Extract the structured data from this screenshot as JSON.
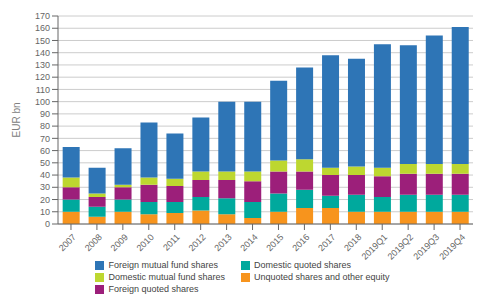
{
  "chart_data": {
    "type": "bar",
    "stacked": true,
    "grid": true,
    "legend": "bottom",
    "ylabel": "EUR bn",
    "categories": [
      "2007",
      "2008",
      "2009",
      "2010",
      "2011",
      "2012",
      "2013",
      "2014",
      "2015",
      "2016",
      "2017",
      "2018",
      "2019Q1",
      "2019Q2",
      "2019Q3",
      "2019Q4"
    ],
    "series": [
      {
        "name": "Unquoted shares and other equity",
        "color": "#f7941d",
        "values": [
          10,
          6,
          10,
          8,
          9,
          11,
          8,
          5,
          10,
          13,
          13,
          10,
          10,
          10,
          10,
          10
        ]
      },
      {
        "name": "Domestic quoted shares",
        "color": "#00a99d",
        "values": [
          10,
          8,
          10,
          10,
          9,
          11,
          13,
          13,
          15,
          15,
          10,
          14,
          12,
          14,
          14,
          14
        ]
      },
      {
        "name": "Foreign quoted shares",
        "color": "#9c1f7a",
        "values": [
          10,
          8,
          10,
          14,
          13,
          14,
          15,
          17,
          18,
          15,
          17,
          16,
          17,
          17,
          17,
          17
        ]
      },
      {
        "name": "Domestic mutual fund shares",
        "color": "#bdd730",
        "values": [
          8,
          3,
          2,
          6,
          6,
          7,
          7,
          8,
          9,
          10,
          6,
          7,
          7,
          8,
          8,
          8
        ]
      },
      {
        "name": "Foreign mutual fund shares",
        "color": "#2e75b6",
        "values": [
          25,
          21,
          30,
          45,
          37,
          44,
          57,
          57,
          65,
          75,
          92,
          88,
          101,
          97,
          105,
          112
        ]
      }
    ],
    "ylim": [
      0,
      170
    ],
    "yticks": [
      0,
      10,
      20,
      30,
      40,
      50,
      60,
      70,
      80,
      90,
      100,
      110,
      120,
      130,
      140,
      150,
      160,
      170
    ]
  }
}
